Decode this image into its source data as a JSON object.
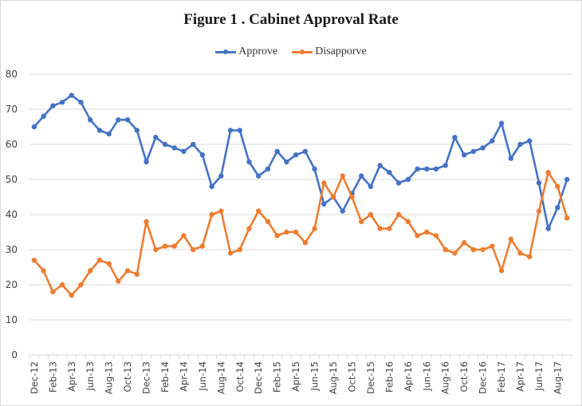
{
  "chart_data": {
    "type": "line",
    "title": "Figure 1 . Cabinet Approval Rate",
    "xlabel": "",
    "ylabel": "",
    "ylim": [
      0,
      80
    ],
    "yticks": [
      0,
      10,
      20,
      30,
      40,
      50,
      60,
      70,
      80
    ],
    "grid": true,
    "legend_position": "top-center",
    "x": [
      "Dec-12",
      "Jan-13",
      "Feb-13",
      "Mar-13",
      "Apr-13",
      "May-13",
      "Jun-13",
      "Jul-13",
      "Aug-13",
      "Sep-13",
      "Oct-13",
      "Nov-13",
      "Dec-13",
      "Jan-14",
      "Feb-14",
      "Mar-14",
      "Apr-14",
      "May-14",
      "Jun-14",
      "Jul-14",
      "Aug-14",
      "Sep-14",
      "Oct-14",
      "Nov-14",
      "Dec-14",
      "Jan-15",
      "Feb-15",
      "Mar-15",
      "Apr-15",
      "May-15",
      "Jun-15",
      "Jul-15",
      "Aug-15",
      "Sep-15",
      "Oct-15",
      "Nov-15",
      "Dec-15",
      "Jan-16",
      "Feb-16",
      "Mar-16",
      "Apr-16",
      "May-16",
      "Jun-16",
      "Jul-16",
      "Aug-16",
      "Sep-16",
      "Oct-16",
      "Nov-16",
      "Dec-16",
      "Jan-17",
      "Feb-17",
      "Mar-17",
      "Apr-17",
      "May-17",
      "Jun-17",
      "Jul-17",
      "Aug-17",
      "Sep-17"
    ],
    "xtick_labels": [
      "Dec-12",
      "Feb-13",
      "Apr-13",
      "Jun-13",
      "Aug-13",
      "Oct-13",
      "Dec-13",
      "Feb-14",
      "Apr-14",
      "Jun-14",
      "Aug-14",
      "Oct-14",
      "Dec-14",
      "Feb-15",
      "Apr-15",
      "Jun-15",
      "Aug-15",
      "Oct-15",
      "Dec-15",
      "Feb-16",
      "Apr-16",
      "Jun-16",
      "Aug-16",
      "Oct-16",
      "Dec-16",
      "Feb-17",
      "Apr-17",
      "Jun-17",
      "Aug-17"
    ],
    "series": [
      {
        "name": "Approve",
        "color": "#4472c4",
        "values": [
          65,
          68,
          71,
          72,
          74,
          72,
          67,
          64,
          63,
          67,
          67,
          64,
          55,
          62,
          60,
          59,
          58,
          60,
          57,
          48,
          51,
          64,
          64,
          55,
          51,
          53,
          58,
          55,
          57,
          58,
          53,
          43,
          45,
          41,
          46,
          51,
          48,
          54,
          52,
          49,
          50,
          53,
          53,
          53,
          54,
          62,
          57,
          58,
          59,
          61,
          66,
          56,
          60,
          61,
          49,
          36,
          42,
          50
        ]
      },
      {
        "name": "Disapporve",
        "color": "#ed7d31",
        "values": [
          27,
          24,
          18,
          20,
          17,
          20,
          24,
          27,
          26,
          21,
          24,
          23,
          38,
          30,
          31,
          31,
          34,
          30,
          31,
          40,
          41,
          29,
          30,
          36,
          41,
          38,
          34,
          35,
          35,
          32,
          36,
          49,
          45,
          51,
          45,
          38,
          40,
          36,
          36,
          40,
          38,
          34,
          35,
          34,
          30,
          29,
          32,
          30,
          30,
          31,
          24,
          33,
          29,
          28,
          41,
          52,
          48,
          39
        ]
      }
    ]
  }
}
